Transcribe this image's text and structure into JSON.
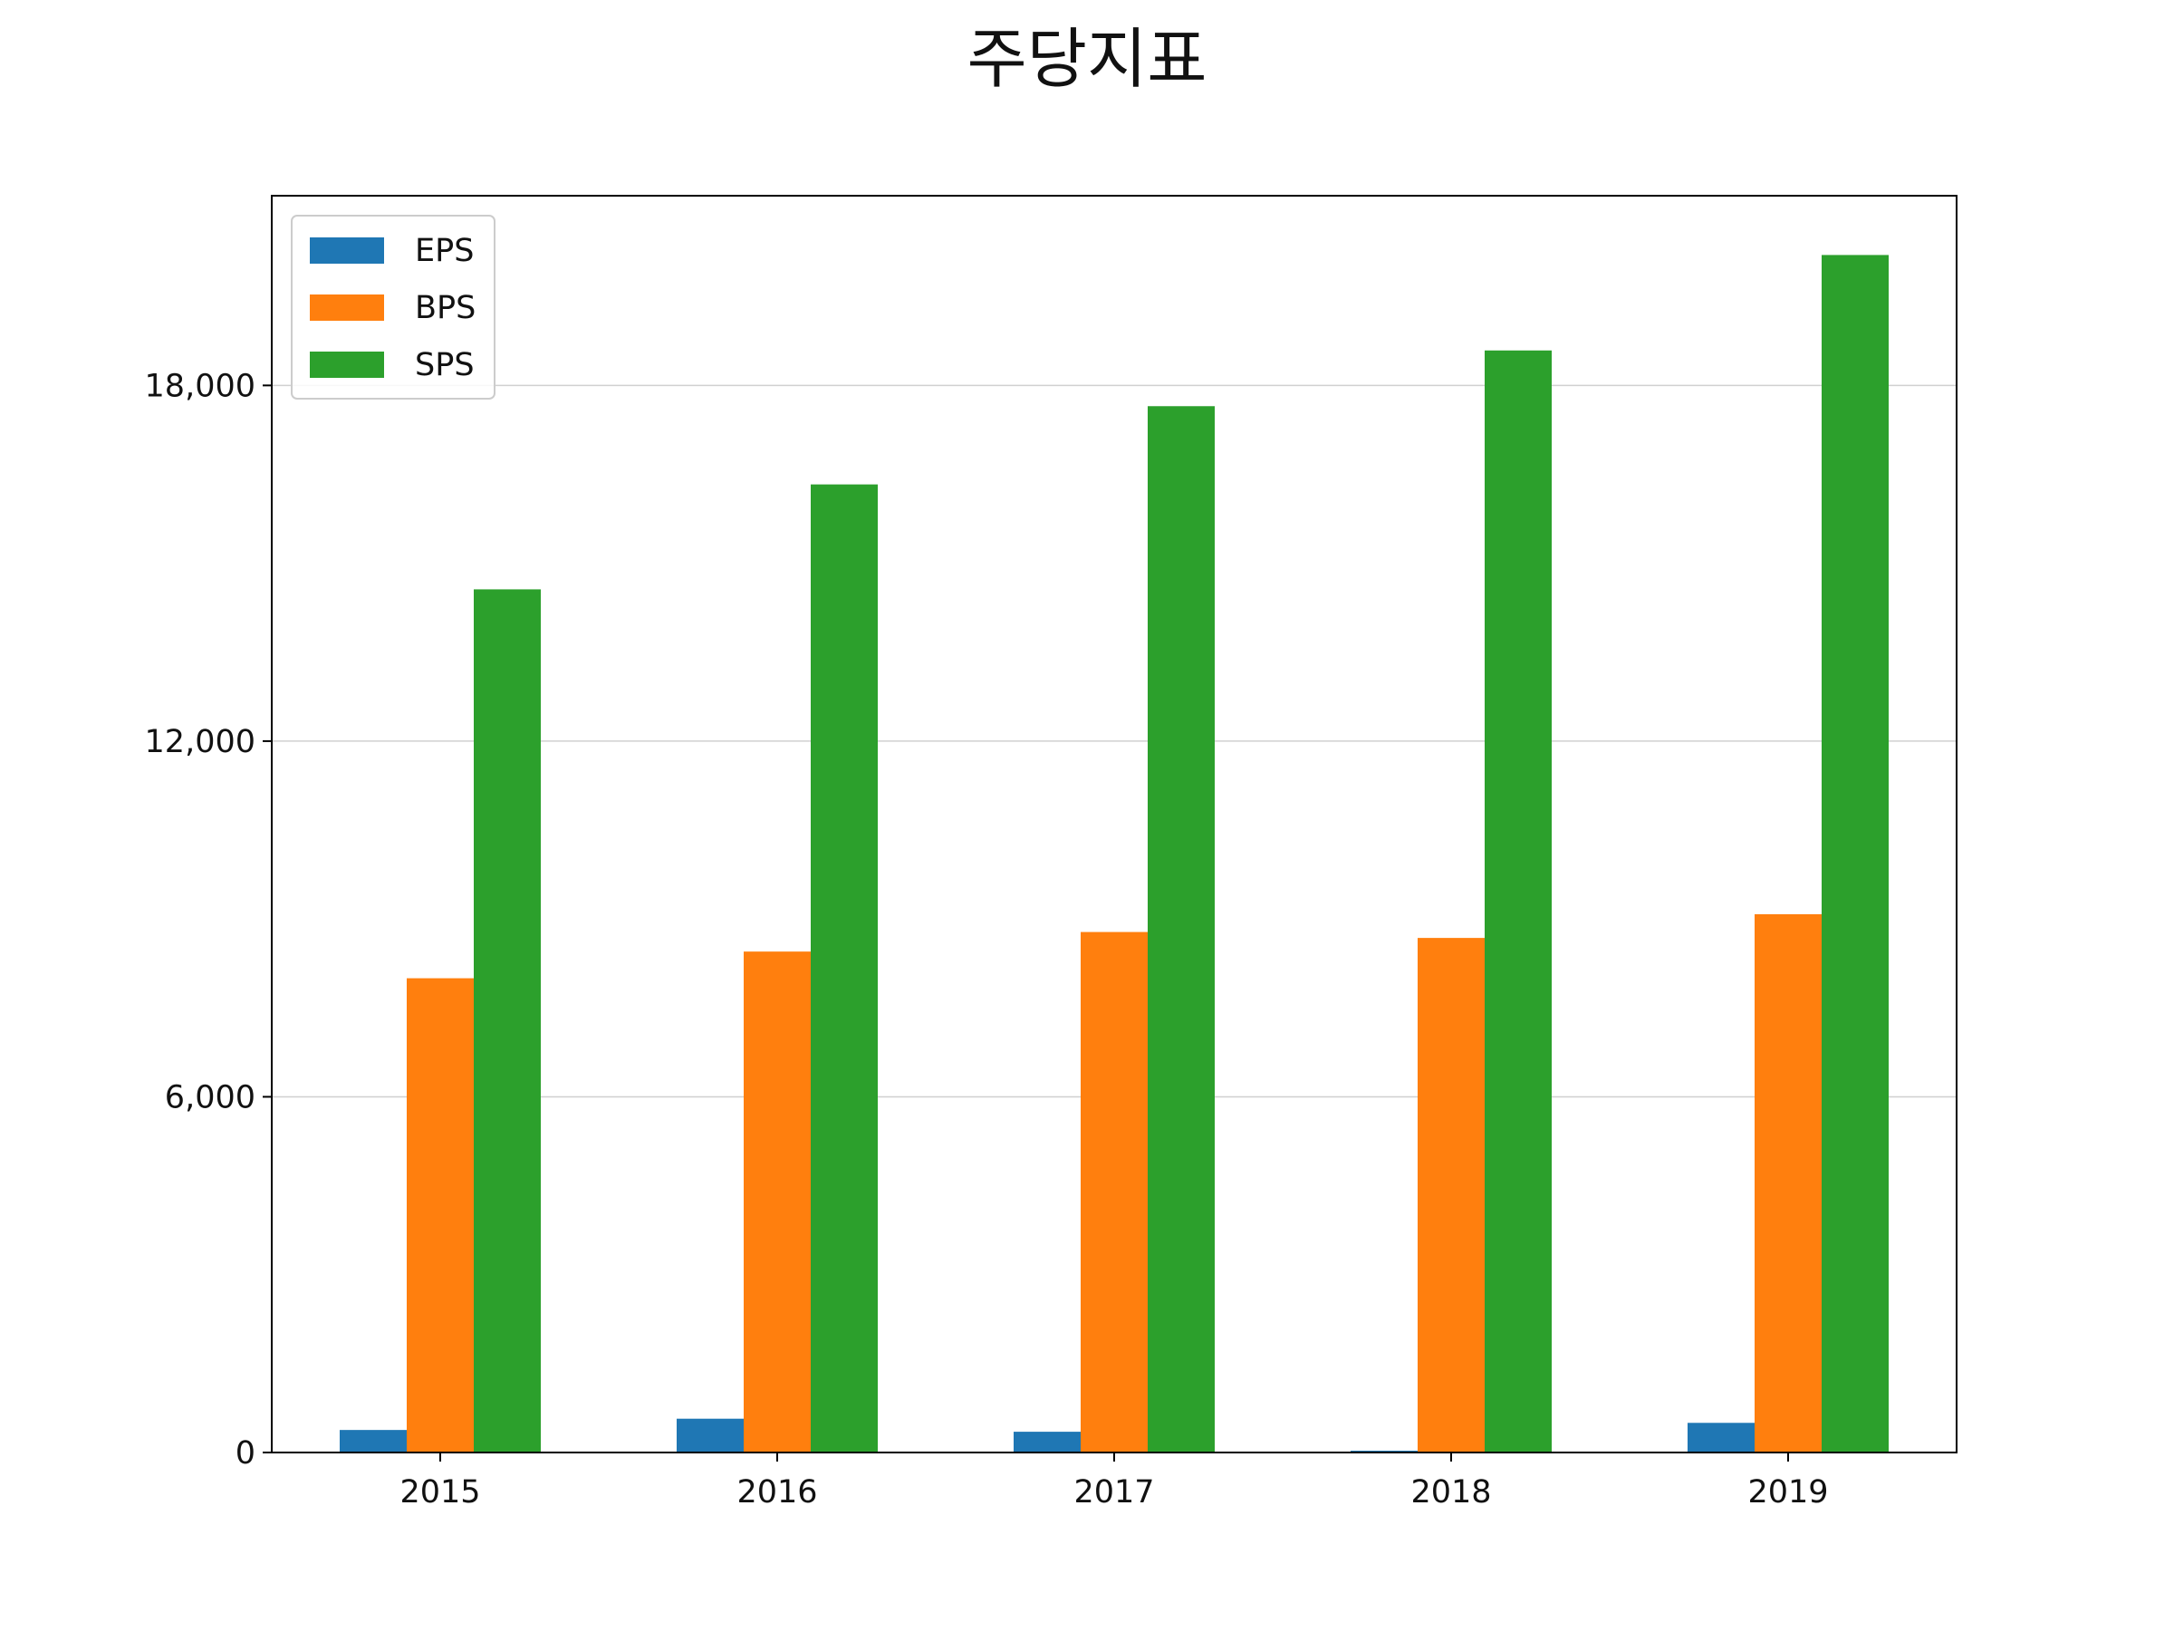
{
  "chart_data": {
    "type": "bar",
    "title": "주당지표",
    "xlabel": "",
    "ylabel": "",
    "categories": [
      "2015",
      "2016",
      "2017",
      "2018",
      "2019"
    ],
    "series": [
      {
        "name": "EPS",
        "color": "#1f77b4",
        "values": [
          380,
          570,
          350,
          30,
          500
        ]
      },
      {
        "name": "BPS",
        "color": "#ff7f0e",
        "values": [
          8000,
          8450,
          8780,
          8680,
          9080
        ]
      },
      {
        "name": "SPS",
        "color": "#2ca02c",
        "values": [
          14560,
          16330,
          17650,
          18590,
          20200
        ]
      }
    ],
    "ylim": [
      0,
      21200
    ],
    "yticks": [
      0,
      6000,
      12000,
      18000
    ],
    "ytick_labels": [
      "0",
      "6,000",
      "12,000",
      "18,000"
    ],
    "grid": "y",
    "legend": "top-left"
  }
}
